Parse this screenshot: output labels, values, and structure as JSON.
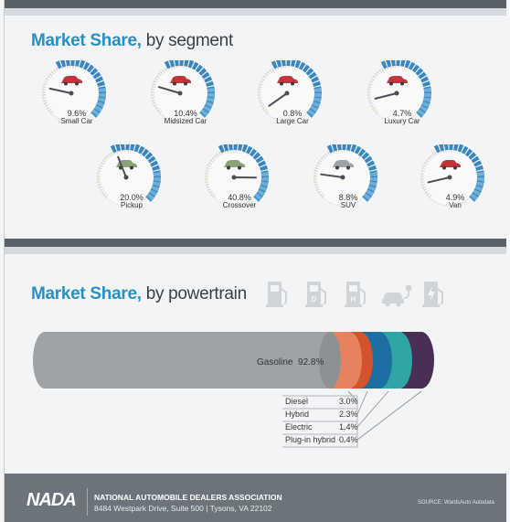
{
  "sections": {
    "segment": {
      "title_accent": "Market Share,",
      "title_rest": " by segment"
    },
    "powertrain": {
      "title_accent": "Market Share,",
      "title_rest": " by powertrain"
    }
  },
  "colors": {
    "accent": "#2a8fc4",
    "gasoline": "#9ea3a8",
    "diesel": "#e8825e",
    "hybrid": "#d2542a",
    "electric": "#1d6fa3",
    "plugin": "#2fa6a6",
    "plugin_cap": "#4a2f55"
  },
  "chart_data": [
    {
      "type": "gauge",
      "categories": [
        "Small Car",
        "Midsized Car",
        "Large Car",
        "Luxury Car",
        "Pickup",
        "Crossover",
        "SUV",
        "Van"
      ],
      "values": [
        9.6,
        10.4,
        0.8,
        4.7,
        20.0,
        40.8,
        8.8,
        4.9
      ],
      "value_labels": [
        "9.6%",
        "10.4%",
        "0.8%",
        "4.7%",
        "20.0%",
        "40.8%",
        "8.8%",
        "4.9%"
      ],
      "icon_colors": [
        "#c0353a",
        "#c0353a",
        "#c0353a",
        "#c0353a",
        "#8aa376",
        "#8aa376",
        "#9ea3a8",
        "#c0353a"
      ],
      "title": "Market Share, by segment"
    },
    {
      "type": "bar",
      "categories": [
        "Gasoline",
        "Diesel",
        "Hybrid",
        "Electric",
        "Plug-in hybrid"
      ],
      "values": [
        92.8,
        3.0,
        2.3,
        1.4,
        0.4
      ],
      "value_labels": [
        "92.8%",
        "3.0%",
        "2.3%",
        "1.4%",
        "0.4%"
      ],
      "title": "Market Share, by powertrain"
    }
  ],
  "gas_label": {
    "name": "Gasoline",
    "value": "92.8%"
  },
  "legend": [
    {
      "name": "Diesel",
      "value": "3.0%"
    },
    {
      "name": "Hybrid",
      "value": "2.3%"
    },
    {
      "name": "Electric",
      "value": "1.4%"
    },
    {
      "name": "Plug-in hybrid",
      "value": "0.4%"
    }
  ],
  "powertrain_icons": [
    "gas-pump-icon",
    "diesel-pump-icon",
    "hybrid-pump-icon",
    "electric-car-plug-icon",
    "plug-in-pump-icon"
  ],
  "footer": {
    "logo": "NADA",
    "association": "NATIONAL AUTOMOBILE DEALERS ASSOCIATION",
    "address": "8484 Westpark Drive, Suite 500 | Tysons, VA  22102",
    "source": "SOURCE: WardsAuto Autodata"
  }
}
